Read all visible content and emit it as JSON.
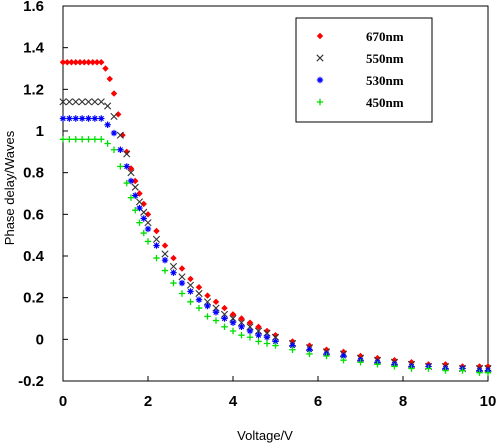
{
  "chart_data": {
    "type": "scatter",
    "title": "",
    "xlabel": "Voltage/V",
    "ylabel": "Phase delay/Waves",
    "xlim": [
      0,
      10
    ],
    "ylim": [
      -0.2,
      1.6
    ],
    "xticks": [
      "0",
      "2",
      "4",
      "6",
      "8",
      "10"
    ],
    "xtick_values": [
      0,
      2,
      4,
      6,
      8,
      10
    ],
    "yticks": [
      "-0.2",
      "0",
      "0.2",
      "0.4",
      "0.6",
      "0.8",
      "1",
      "1.2",
      "1.4",
      "1.6"
    ],
    "ytick_values": [
      -0.2,
      0,
      0.2,
      0.4,
      0.6,
      0.8,
      1,
      1.2,
      1.4,
      1.6
    ],
    "grid": false,
    "legend_position": "top-right",
    "series": [
      {
        "name": "670nm",
        "color": "#ff0000",
        "marker": "diamond",
        "x": [
          0,
          0.1,
          0.2,
          0.3,
          0.4,
          0.5,
          0.6,
          0.7,
          0.8,
          0.9,
          1.0,
          1.1,
          1.2,
          1.3,
          1.4,
          1.5,
          1.6,
          1.7,
          1.8,
          1.9,
          2.0,
          2.2,
          2.4,
          2.6,
          2.8,
          3.0,
          3.2,
          3.4,
          3.6,
          3.8,
          4.0,
          4.2,
          4.4,
          4.6,
          4.8,
          5.0,
          5.4,
          5.8,
          6.2,
          6.6,
          7.0,
          7.4,
          7.8,
          8.2,
          8.6,
          9.0,
          9.4,
          9.8,
          10.0
        ],
        "y": [
          1.33,
          1.33,
          1.33,
          1.33,
          1.33,
          1.33,
          1.33,
          1.33,
          1.33,
          1.33,
          1.3,
          1.25,
          1.18,
          1.08,
          0.98,
          0.9,
          0.82,
          0.76,
          0.7,
          0.65,
          0.6,
          0.52,
          0.45,
          0.39,
          0.34,
          0.29,
          0.25,
          0.21,
          0.18,
          0.15,
          0.12,
          0.1,
          0.08,
          0.06,
          0.04,
          0.02,
          -0.01,
          -0.03,
          -0.05,
          -0.06,
          -0.08,
          -0.09,
          -0.1,
          -0.11,
          -0.12,
          -0.12,
          -0.13,
          -0.13,
          -0.13
        ]
      },
      {
        "name": "550nm",
        "color": "#333333",
        "marker": "x",
        "x": [
          0,
          0.15,
          0.3,
          0.45,
          0.6,
          0.75,
          0.9,
          1.05,
          1.2,
          1.35,
          1.5,
          1.6,
          1.7,
          1.8,
          1.9,
          2.0,
          2.2,
          2.4,
          2.6,
          2.8,
          3.0,
          3.2,
          3.4,
          3.6,
          3.8,
          4.0,
          4.2,
          4.4,
          4.6,
          4.8,
          5.0,
          5.4,
          5.8,
          6.2,
          6.6,
          7.0,
          7.4,
          7.8,
          8.2,
          8.6,
          9.0,
          9.4,
          9.8,
          10.0
        ],
        "y": [
          1.14,
          1.14,
          1.14,
          1.14,
          1.14,
          1.14,
          1.14,
          1.12,
          1.07,
          0.98,
          0.89,
          0.8,
          0.73,
          0.66,
          0.61,
          0.56,
          0.48,
          0.41,
          0.35,
          0.3,
          0.26,
          0.22,
          0.18,
          0.15,
          0.12,
          0.1,
          0.08,
          0.06,
          0.04,
          0.03,
          0.01,
          -0.02,
          -0.04,
          -0.06,
          -0.07,
          -0.09,
          -0.1,
          -0.11,
          -0.12,
          -0.13,
          -0.13,
          -0.14,
          -0.14,
          -0.14
        ]
      },
      {
        "name": "530nm",
        "color": "#0000ff",
        "marker": "star",
        "x": [
          0,
          0.15,
          0.3,
          0.45,
          0.6,
          0.75,
          0.9,
          1.05,
          1.2,
          1.35,
          1.5,
          1.6,
          1.7,
          1.8,
          1.9,
          2.0,
          2.2,
          2.4,
          2.6,
          2.8,
          3.0,
          3.2,
          3.4,
          3.6,
          3.8,
          4.0,
          4.2,
          4.4,
          4.6,
          4.8,
          5.0,
          5.4,
          5.8,
          6.2,
          6.6,
          7.0,
          7.4,
          7.8,
          8.2,
          8.6,
          9.0,
          9.4,
          9.8,
          10.0
        ],
        "y": [
          1.06,
          1.06,
          1.06,
          1.06,
          1.06,
          1.06,
          1.06,
          1.03,
          0.99,
          0.91,
          0.83,
          0.76,
          0.69,
          0.63,
          0.58,
          0.53,
          0.45,
          0.38,
          0.32,
          0.27,
          0.23,
          0.19,
          0.16,
          0.13,
          0.1,
          0.08,
          0.06,
          0.04,
          0.02,
          0.01,
          -0.01,
          -0.03,
          -0.05,
          -0.07,
          -0.08,
          -0.1,
          -0.11,
          -0.12,
          -0.13,
          -0.13,
          -0.14,
          -0.14,
          -0.15,
          -0.15
        ]
      },
      {
        "name": "450nm",
        "color": "#00dd00",
        "marker": "plus",
        "x": [
          0,
          0.15,
          0.3,
          0.45,
          0.6,
          0.75,
          0.9,
          1.05,
          1.2,
          1.35,
          1.5,
          1.6,
          1.7,
          1.8,
          1.9,
          2.0,
          2.2,
          2.4,
          2.6,
          2.8,
          3.0,
          3.2,
          3.4,
          3.6,
          3.8,
          4.0,
          4.2,
          4.4,
          4.6,
          4.8,
          5.0,
          5.4,
          5.8,
          6.2,
          6.6,
          7.0,
          7.4,
          7.8,
          8.2,
          8.6,
          9.0,
          9.4,
          9.8,
          10.0
        ],
        "y": [
          0.96,
          0.96,
          0.96,
          0.96,
          0.96,
          0.96,
          0.96,
          0.94,
          0.91,
          0.83,
          0.75,
          0.68,
          0.62,
          0.56,
          0.51,
          0.47,
          0.39,
          0.33,
          0.27,
          0.22,
          0.18,
          0.15,
          0.11,
          0.09,
          0.06,
          0.04,
          0.02,
          0.01,
          -0.01,
          -0.02,
          -0.03,
          -0.05,
          -0.07,
          -0.08,
          -0.1,
          -0.11,
          -0.12,
          -0.13,
          -0.14,
          -0.14,
          -0.15,
          -0.15,
          -0.16,
          -0.16
        ]
      }
    ]
  }
}
